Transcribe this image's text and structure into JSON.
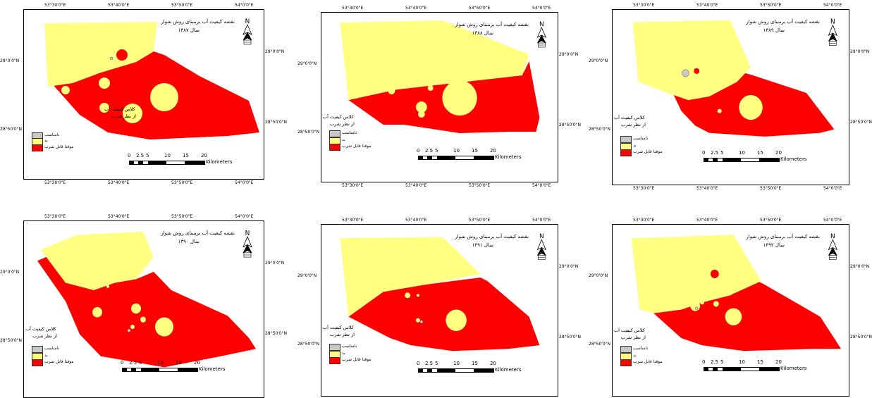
{
  "colors": {
    "unsuitable": "#c8c8c8",
    "bad": "#ffff80",
    "acceptable": "#ff0000"
  },
  "panels": [
    {
      "title": "نقشه کیفیت آب برمبنای روش شوار",
      "year": "سال ۱۳۸۷",
      "top_labels": [
        "53°30'0\"E",
        "53°40'0\"E",
        "53°50'0\"E",
        "54°0'0\"E"
      ],
      "bottom_labels": [
        "53°30'0\"E",
        "53°40'0\"E",
        "53°50'0\"E",
        "54°0'0\"E"
      ],
      "left_labels": [
        "29°0'0\"N",
        "28°50'0\"N"
      ],
      "right_labels": [
        "29°0'0\"N",
        "28°50'0\"N"
      ]
    },
    {
      "title": "نقشه کیفیت آب برمبنای روش شوار",
      "year": "سال ۱۳۸۸",
      "top_labels": [
        "53°30'0\"E",
        "53°40'0\"E",
        "53°50'0\"E",
        "54°0'0\"E"
      ],
      "bottom_labels": [
        "53°30'0\"E",
        "53°40'0\"E",
        "53°50'0\"E",
        "54°0'0\"E"
      ],
      "left_labels": [
        "29°0'0\"N",
        "28°50'0\"N"
      ],
      "right_labels": [
        "29°0'0\"N",
        "28°50'0\"N"
      ]
    },
    {
      "title": "نقشه کیفیت آب برمبنای روش شوار",
      "year": "سال ۱۳۸۹",
      "top_labels": [
        "53°30'0\"E",
        "53°40'0\"E",
        "53°50'0\"E",
        "54°0'0\"E"
      ],
      "bottom_labels": [
        "53°30'0\"E",
        "53°40'0\"E",
        "53°50'0\"E",
        "54°0'0\"E"
      ],
      "left_labels": [
        "29°0'0\"N",
        "28°50'0\"N"
      ],
      "right_labels": [
        "29°0'0\"N",
        "28°50'0\"N"
      ]
    },
    {
      "title": "نقشه کیفیت آب برمبنای روش شوار",
      "year": "سال ۱۳۹۰",
      "top_labels": [
        "53°30'0\"E",
        "53°40'0\"E",
        "53°50'0\"E",
        "54°0'0\"E"
      ],
      "bottom_labels": [],
      "left_labels": [
        "29°0'0\"N",
        "28°50'0\"N"
      ],
      "right_labels": [
        "29°0'0\"N",
        "28°50'0\"N"
      ]
    },
    {
      "title": "نقشه کیفیت آب برمبنای روش شوار",
      "year": "سال ۱۳۹۱",
      "top_labels": [
        "53°30'0\"E",
        "53°40'0\"E",
        "53°50'0\"E",
        "54°0'0\"E"
      ],
      "bottom_labels": [],
      "left_labels": [
        "29°0'0\"N",
        "28°50'0\"N"
      ],
      "right_labels": [
        "29°0'0\"N",
        "28°50'0\"N"
      ]
    },
    {
      "title": "نقشه کیفیت آب برمبنای روش شوار",
      "year": "سال ۱۳۹۲",
      "top_labels": [
        "53°30'0\"E",
        "53°40'0\"E",
        "53°50'0\"E",
        "54°0'0\"E"
      ],
      "bottom_labels": [],
      "left_labels": [
        "29°0'0\"N",
        "28°50'0\"N"
      ],
      "right_labels": [
        "29°0'0\"N",
        "28°50'0\"N"
      ]
    }
  ],
  "legend": {
    "title_line1": "کلاس کیفیت آب",
    "title_line2": "از نظر شرب",
    "items": [
      "نامناسب",
      "بد",
      "موقتا قابل شرب"
    ]
  },
  "scale": {
    "numbers": [
      "0",
      "2.5",
      "5",
      "10",
      "15",
      "20"
    ],
    "unit": "Kilometers"
  }
}
